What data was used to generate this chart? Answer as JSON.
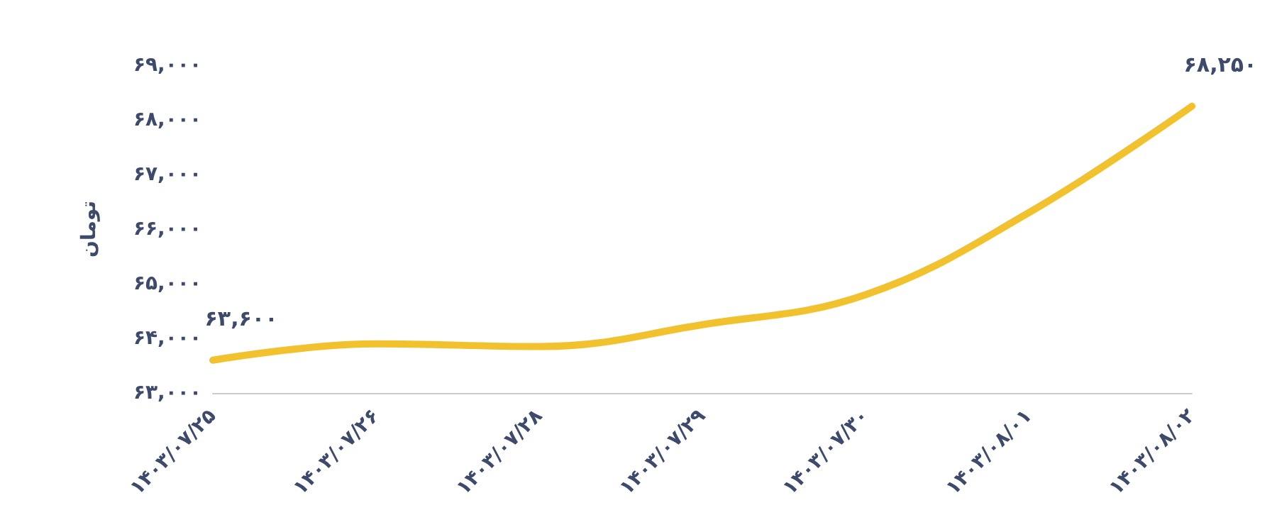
{
  "chart_data": {
    "type": "line",
    "ylabel": "تومان",
    "categories": [
      "۱۴۰۳/۰۷/۲۵",
      "۱۴۰۳/۰۷/۲۶",
      "۱۴۰۳/۰۷/۲۸",
      "۱۴۰۳/۰۷/۲۹",
      "۱۴۰۳/۰۷/۳۰",
      "۱۴۰۳/۰۸/۰۱",
      "۱۴۰۳/۰۸/۰۲"
    ],
    "series": [
      {
        "color": "#f2c12e",
        "values": [
          63600,
          63900,
          63850,
          64250,
          64800,
          66300,
          68250
        ],
        "value_labels": [
          "۶۳,۶۰۰",
          null,
          null,
          null,
          null,
          null,
          "۶۸,۲۵۰"
        ]
      }
    ],
    "ylim": [
      63000,
      69000
    ],
    "yticks": [
      {
        "value": 63000,
        "label": "۶۳,۰۰۰"
      },
      {
        "value": 64000,
        "label": "۶۴,۰۰۰"
      },
      {
        "value": 65000,
        "label": "۶۵,۰۰۰"
      },
      {
        "value": 66000,
        "label": "۶۶,۰۰۰"
      },
      {
        "value": 67000,
        "label": "۶۷,۰۰۰"
      },
      {
        "value": 68000,
        "label": "۶۸,۰۰۰"
      },
      {
        "value": 69000,
        "label": "۶۹,۰۰۰"
      }
    ],
    "grid": false,
    "marker": "none",
    "line_style": "solid"
  }
}
